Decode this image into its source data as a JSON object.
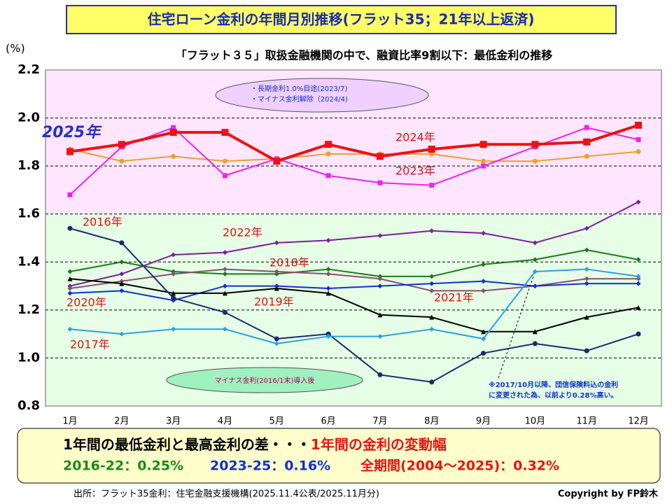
{
  "chart_data": {
    "type": "line",
    "title": "住宅ローン金利の年間月別推移(フラット35；21年以上返済)",
    "subtitle": "「フラット３５」取扱金融機関の中で、融資比率9割以下：最低金利の推移",
    "y_unit": "(%)",
    "categories": [
      "1月",
      "2月",
      "3月",
      "4月",
      "5月",
      "6月",
      "7月",
      "8月",
      "9月",
      "10月",
      "11月",
      "12月"
    ],
    "ylim": [
      0.8,
      2.2
    ],
    "yticks": [
      0.8,
      {
        "value": 1,
        "label": "1.0"
      },
      1.2,
      1.4,
      1.6,
      1.8,
      {
        "value": 2,
        "label": "2.0"
      },
      2.2
    ],
    "grid": true,
    "series": [
      {
        "name": "2024年",
        "color": "#e8a030",
        "values": [
          1.87,
          1.82,
          1.84,
          1.82,
          1.83,
          1.85,
          1.85,
          1.85,
          1.82,
          1.82,
          1.84,
          1.86
        ]
      },
      {
        "name": "2023年",
        "color": "#ee22ee",
        "values": [
          1.68,
          1.88,
          1.96,
          1.76,
          1.83,
          1.76,
          1.73,
          1.72,
          1.8,
          1.88,
          1.96,
          1.91
        ]
      },
      {
        "name": "2022年",
        "color": "#7a1fa0",
        "values": [
          1.3,
          1.35,
          1.43,
          1.44,
          1.48,
          1.49,
          1.51,
          1.53,
          1.52,
          1.48,
          1.54,
          1.65
        ]
      },
      {
        "name": "2018年",
        "color": "#1a7a1a",
        "values": [
          1.36,
          1.4,
          1.36,
          1.35,
          1.35,
          1.37,
          1.34,
          1.34,
          1.39,
          1.41,
          1.45,
          1.41
        ]
      },
      {
        "name": "2021年",
        "color": "#8a5070",
        "values": [
          1.29,
          1.32,
          1.35,
          1.37,
          1.36,
          1.35,
          1.33,
          1.28,
          1.28,
          1.3,
          1.33,
          1.33
        ]
      },
      {
        "name": "2020年",
        "color": "#1030d0",
        "values": [
          1.27,
          1.28,
          1.24,
          1.3,
          1.3,
          1.29,
          1.3,
          1.31,
          1.32,
          1.3,
          1.31,
          1.31
        ]
      },
      {
        "name": "2019年",
        "color": "#000000",
        "values": [
          1.33,
          1.31,
          1.27,
          1.27,
          1.29,
          1.27,
          1.18,
          1.17,
          1.11,
          1.11,
          1.17,
          1.21
        ]
      },
      {
        "name": "2016年",
        "color": "#1a2a6a",
        "values": [
          1.54,
          1.48,
          1.25,
          1.19,
          1.08,
          1.1,
          0.93,
          0.9,
          1.02,
          1.06,
          1.03,
          1.1
        ]
      },
      {
        "name": "2017年",
        "color": "#2aa0e0",
        "values": [
          1.12,
          1.1,
          1.12,
          1.12,
          1.06,
          1.09,
          1.09,
          1.12,
          1.08,
          1.36,
          1.37,
          1.34
        ]
      },
      {
        "name": "2025年",
        "color": "#ee1111",
        "values": [
          1.86,
          1.89,
          1.94,
          1.94,
          1.82,
          1.89,
          1.84,
          1.87,
          1.89,
          1.89,
          1.9,
          1.97
        ]
      }
    ],
    "annotations": [
      "・長期金利1.0%目途(2023/7)",
      "・マイナス金利解除（2024/4)",
      "マイナス金利(2016/1末)導入後",
      "※2017/10月以降、団信保険料込の金利",
      "に変更された為、以前より0.28%高い。"
    ],
    "summary": {
      "heading": "1年間の最低金利と最高金利の差・・・",
      "heading_red": "1年間の金利の変動幅",
      "items": [
        "2016-22：0.25%",
        "2023-25：0.16%",
        "全期間(2004～2025)：0.32%"
      ]
    },
    "source": "出所：フラット35金利：住宅金融支援機構(2025.11.4公表/2025.11月分)",
    "copyright": "Copyright by FP鈴木"
  }
}
